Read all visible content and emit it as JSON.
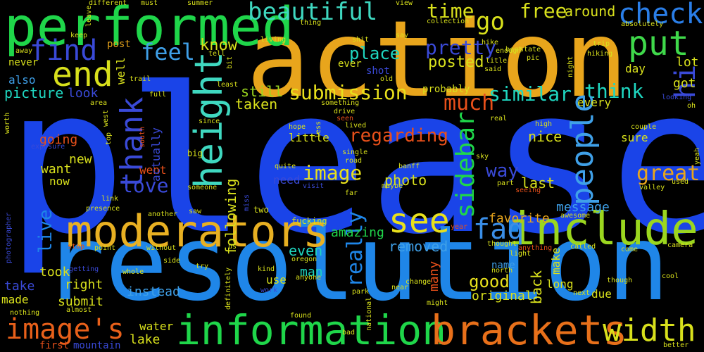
{
  "words": [
    {
      "text": "please",
      "color": "#1a44e8",
      "rotated": false
    },
    {
      "text": "action",
      "color": "#e8a51c",
      "rotated": false
    },
    {
      "text": "resolution",
      "color": "#1f86e8",
      "rotated": false
    },
    {
      "text": "performed",
      "color": "#1fd64a",
      "rotated": false
    },
    {
      "text": "moderators",
      "color": "#e8b022",
      "rotated": false
    },
    {
      "text": "include",
      "color": "#9bd61f",
      "rotated": false
    },
    {
      "text": "information",
      "color": "#1fd64a",
      "rotated": false
    },
    {
      "text": "brackets",
      "color": "#e8701a",
      "rotated": false
    },
    {
      "text": "image's",
      "color": "#e8601a",
      "rotated": false
    },
    {
      "text": "width",
      "color": "#d8e01c",
      "rotated": false
    },
    {
      "text": "height",
      "color": "#3fd8c0",
      "rotated": true
    },
    {
      "text": "end",
      "color": "#d8e01c",
      "rotated": false
    },
    {
      "text": "put",
      "color": "#3fd84a",
      "rotated": false
    },
    {
      "text": "check",
      "color": "#2a7ee8",
      "rotated": false
    },
    {
      "text": "find",
      "color": "#3a4ad8",
      "rotated": false
    },
    {
      "text": "see",
      "color": "#e8e01c",
      "rotated": false
    },
    {
      "text": "faq",
      "color": "#3a8ee8",
      "rotated": false
    },
    {
      "text": "beautiful",
      "color": "#3fd8c0",
      "rotated": false
    },
    {
      "text": "go",
      "color": "#d8e01c",
      "rotated": false
    },
    {
      "text": "time",
      "color": "#d8e01c",
      "rotated": false
    },
    {
      "text": "free",
      "color": "#d8e01c",
      "rotated": false
    },
    {
      "text": "around",
      "color": "#d8e01c",
      "rotated": false
    },
    {
      "text": "feel",
      "color": "#3fa0e8",
      "rotated": false
    },
    {
      "text": "know",
      "color": "#d8e01c",
      "rotated": false
    },
    {
      "text": "place",
      "color": "#1fd6c0",
      "rotated": false
    },
    {
      "text": "pretty",
      "color": "#3a4ad8",
      "rotated": false
    },
    {
      "text": "posted",
      "color": "#d8e01c",
      "rotated": false
    },
    {
      "text": "submission",
      "color": "#e8e01c",
      "rotated": false
    },
    {
      "text": "similar",
      "color": "#1fd6c0",
      "rotated": false
    },
    {
      "text": "think",
      "color": "#1fd6c0",
      "rotated": false
    },
    {
      "text": "much",
      "color": "#e8501a",
      "rotated": false
    },
    {
      "text": "people",
      "color": "#3fa0e8",
      "rotated": true
    },
    {
      "text": "thank",
      "color": "#3a4ad8",
      "rotated": true
    },
    {
      "text": "sidebar",
      "color": "#1fd64a",
      "rotated": true
    },
    {
      "text": "hi",
      "color": "#3a4ad8",
      "rotated": true
    },
    {
      "text": "picture",
      "color": "#1fd6c0",
      "rotated": false
    },
    {
      "text": "look",
      "color": "#3a4ad8",
      "rotated": false
    },
    {
      "text": "also",
      "color": "#3fa0e8",
      "rotated": false
    },
    {
      "text": "still",
      "color": "#9bd61f",
      "rotated": false
    },
    {
      "text": "taken",
      "color": "#d8e01c",
      "rotated": false
    },
    {
      "text": "regarding",
      "color": "#e8501a",
      "rotated": false
    },
    {
      "text": "image",
      "color": "#e8e01c",
      "rotated": false
    },
    {
      "text": "great",
      "color": "#e8a51c",
      "rotated": false
    },
    {
      "text": "love",
      "color": "#3a4ad8",
      "rotated": false
    },
    {
      "text": "way",
      "color": "#3a4ad8",
      "rotated": false
    },
    {
      "text": "nice",
      "color": "#d8e01c",
      "rotated": false
    },
    {
      "text": "last",
      "color": "#d8e01c",
      "rotated": false
    },
    {
      "text": "photo",
      "color": "#d8e01c",
      "rotated": false
    },
    {
      "text": "going",
      "color": "#e8501a",
      "rotated": false
    },
    {
      "text": "new",
      "color": "#d8e01c",
      "rotated": false
    },
    {
      "text": "want",
      "color": "#d8e01c",
      "rotated": false
    },
    {
      "text": "went",
      "color": "#e8501a",
      "rotated": false
    },
    {
      "text": "now",
      "color": "#d8e01c",
      "rotated": false
    },
    {
      "text": "little",
      "color": "#d8e01c",
      "rotated": false
    },
    {
      "text": "following",
      "color": "#d8e01c",
      "rotated": true
    },
    {
      "text": "really",
      "color": "#1f86e8",
      "rotated": true
    },
    {
      "text": "live",
      "color": "#1f86e8",
      "rotated": true
    },
    {
      "text": "even",
      "color": "#1fd6c0",
      "rotated": false
    },
    {
      "text": "removed",
      "color": "#3fa0e8",
      "rotated": false
    },
    {
      "text": "amazing",
      "color": "#1fd64a",
      "rotated": false
    },
    {
      "text": "message",
      "color": "#3fa0e8",
      "rotated": false
    },
    {
      "text": "favorite",
      "color": "#e8a51c",
      "rotated": false
    },
    {
      "text": "got",
      "color": "#d8e01c",
      "rotated": false
    },
    {
      "text": "lot",
      "color": "#d8e01c",
      "rotated": false
    },
    {
      "text": "every",
      "color": "#d8e01c",
      "rotated": false
    },
    {
      "text": "day",
      "color": "#d8e01c",
      "rotated": false
    },
    {
      "text": "sure",
      "color": "#d8e01c",
      "rotated": false
    },
    {
      "text": "good",
      "color": "#e8e01c",
      "rotated": false
    },
    {
      "text": "man",
      "color": "#1fd6c0",
      "rotated": false
    },
    {
      "text": "took",
      "color": "#d8e01c",
      "rotated": false
    },
    {
      "text": "take",
      "color": "#3a4ad8",
      "rotated": false
    },
    {
      "text": "right",
      "color": "#d8e01c",
      "rotated": false
    },
    {
      "text": "made",
      "color": "#d8e01c",
      "rotated": false
    },
    {
      "text": "submit",
      "color": "#d8e01c",
      "rotated": false
    },
    {
      "text": "instead",
      "color": "#3fa0e8",
      "rotated": false
    },
    {
      "text": "original",
      "color": "#d8e01c",
      "rotated": false
    },
    {
      "text": "long",
      "color": "#d8e01c",
      "rotated": false
    },
    {
      "text": "due",
      "color": "#d8e01c",
      "rotated": false
    },
    {
      "text": "back",
      "color": "#d8e01c",
      "rotated": true
    },
    {
      "text": "make",
      "color": "#d8e01c",
      "rotated": true
    },
    {
      "text": "use",
      "color": "#d8e01c",
      "rotated": false
    },
    {
      "text": "water",
      "color": "#d8e01c",
      "rotated": false
    },
    {
      "text": "lake",
      "color": "#d8e01c",
      "rotated": false
    },
    {
      "text": "mountain",
      "color": "#3a4ad8",
      "rotated": false
    },
    {
      "text": "first",
      "color": "#e8501a",
      "rotated": false
    },
    {
      "text": "name",
      "color": "#3fa0e8",
      "rotated": false
    },
    {
      "text": "many",
      "color": "#e8501a",
      "rotated": true
    },
    {
      "text": "need",
      "color": "#3a4ad8",
      "rotated": false
    },
    {
      "text": "post",
      "color": "#e8a51c",
      "rotated": false
    },
    {
      "text": "ever",
      "color": "#d8e01c",
      "rotated": false
    },
    {
      "text": "shot",
      "color": "#3a4ad8",
      "rotated": false
    },
    {
      "text": "probably",
      "color": "#d8e01c",
      "rotated": false
    },
    {
      "text": "actually",
      "color": "#3a4ad8",
      "rotated": true
    },
    {
      "text": "well",
      "color": "#d8e01c",
      "rotated": true
    },
    {
      "text": "never",
      "color": "#d8e01c",
      "rotated": false
    },
    {
      "text": "summer",
      "color": "#d8e01c",
      "rotated": false
    },
    {
      "text": "must",
      "color": "#d8e01c",
      "rotated": false
    },
    {
      "text": "different",
      "color": "#d8e01c",
      "rotated": false
    },
    {
      "text": "best",
      "color": "#d8e01c",
      "rotated": false
    },
    {
      "text": "view",
      "color": "#d8e01c",
      "rotated": false
    },
    {
      "text": "hike",
      "color": "#d8e01c",
      "rotated": false
    },
    {
      "text": "enough",
      "color": "#d8e01c",
      "rotated": false
    },
    {
      "text": "title",
      "color": "#d8e01c",
      "rotated": false
    },
    {
      "text": "said",
      "color": "#d8e01c",
      "rotated": false
    },
    {
      "text": "state",
      "color": "#d8e01c",
      "rotated": false
    },
    {
      "text": "pic",
      "color": "#d8e01c",
      "rotated": false
    },
    {
      "text": "trip",
      "color": "#d8e01c",
      "rotated": false
    },
    {
      "text": "hiking",
      "color": "#d8e01c",
      "rotated": false
    },
    {
      "text": "absolutely",
      "color": "#d8e01c",
      "rotated": false
    },
    {
      "text": "living",
      "color": "#d8e01c",
      "rotated": false
    },
    {
      "text": "thing",
      "color": "#d8e01c",
      "rotated": false
    },
    {
      "text": "collection",
      "color": "#d8e01c",
      "rotated": false
    },
    {
      "text": "say",
      "color": "#d8e01c",
      "rotated": false
    },
    {
      "text": "keep",
      "color": "#d8e01c",
      "rotated": false
    },
    {
      "text": "away",
      "color": "#d8e01c",
      "rotated": false
    },
    {
      "text": "tell",
      "color": "#d8e01c",
      "rotated": false
    },
    {
      "text": "bit",
      "color": "#d8e01c",
      "rotated": true
    },
    {
      "text": "least",
      "color": "#d8e01c",
      "rotated": false
    },
    {
      "text": "old",
      "color": "#d8e01c",
      "rotated": false
    },
    {
      "text": "trail",
      "color": "#d8e01c",
      "rotated": false
    },
    {
      "text": "full",
      "color": "#d8e01c",
      "rotated": false
    },
    {
      "text": "area",
      "color": "#d8e01c",
      "rotated": false
    },
    {
      "text": "something",
      "color": "#d8e01c",
      "rotated": false
    },
    {
      "text": "drive",
      "color": "#d8e01c",
      "rotated": false
    },
    {
      "text": "seen",
      "color": "#e8501a",
      "rotated": false
    },
    {
      "text": "lived",
      "color": "#d8e01c",
      "rotated": false
    },
    {
      "text": "since",
      "color": "#d8e01c",
      "rotated": false
    },
    {
      "text": "hope",
      "color": "#d8e01c",
      "rotated": false
    },
    {
      "text": "single",
      "color": "#d8e01c",
      "rotated": false
    },
    {
      "text": "road",
      "color": "#d8e01c",
      "rotated": false
    },
    {
      "text": "quite",
      "color": "#d8e01c",
      "rotated": false
    },
    {
      "text": "banff",
      "color": "#d8e01c",
      "rotated": false
    },
    {
      "text": "visit",
      "color": "#3a4ad8",
      "rotated": false
    },
    {
      "text": "far",
      "color": "#d8e01c",
      "rotated": false
    },
    {
      "text": "maybe",
      "color": "#d8e01c",
      "rotated": false
    },
    {
      "text": "big",
      "color": "#d8e01c",
      "rotated": false
    },
    {
      "text": "someone",
      "color": "#d8e01c",
      "rotated": false
    },
    {
      "text": "link",
      "color": "#d8e01c",
      "rotated": false
    },
    {
      "text": "presence",
      "color": "#d8e01c",
      "rotated": false
    },
    {
      "text": "another",
      "color": "#d8e01c",
      "rotated": false
    },
    {
      "text": "saw",
      "color": "#d8e01c",
      "rotated": false
    },
    {
      "text": "two",
      "color": "#d8e01c",
      "rotated": false
    },
    {
      "text": "fucking",
      "color": "#d8e01c",
      "rotated": false
    },
    {
      "text": "stop",
      "color": "#e8501a",
      "rotated": false
    },
    {
      "text": "point",
      "color": "#d8e01c",
      "rotated": false
    },
    {
      "text": "without",
      "color": "#d8e01c",
      "rotated": false
    },
    {
      "text": "us",
      "color": "#d8e01c",
      "rotated": false
    },
    {
      "text": "getting",
      "color": "#3a4ad8",
      "rotated": false
    },
    {
      "text": "whole",
      "color": "#d8e01c",
      "rotated": false
    },
    {
      "text": "side",
      "color": "#d8e01c",
      "rotated": false
    },
    {
      "text": "try",
      "color": "#d8e01c",
      "rotated": false
    },
    {
      "text": "kind",
      "color": "#d8e01c",
      "rotated": false
    },
    {
      "text": "anyone",
      "color": "#d8e01c",
      "rotated": false
    },
    {
      "text": "work",
      "color": "#3a4ad8",
      "rotated": false
    },
    {
      "text": "found",
      "color": "#d8e01c",
      "rotated": false
    },
    {
      "text": "bad",
      "color": "#d8e01c",
      "rotated": false
    },
    {
      "text": "almost",
      "color": "#d8e01c",
      "rotated": false
    },
    {
      "text": "nothing",
      "color": "#d8e01c",
      "rotated": false
    },
    {
      "text": "change",
      "color": "#d8e01c",
      "rotated": false
    },
    {
      "text": "near",
      "color": "#d8e01c",
      "rotated": false
    },
    {
      "text": "park",
      "color": "#d8e01c",
      "rotated": false
    },
    {
      "text": "might",
      "color": "#d8e01c",
      "rotated": false
    },
    {
      "text": "north",
      "color": "#d8e01c",
      "rotated": false
    },
    {
      "text": "thought",
      "color": "#d8e01c",
      "rotated": false
    },
    {
      "text": "light",
      "color": "#d8e01c",
      "rotated": false
    },
    {
      "text": "anything",
      "color": "#e8501a",
      "rotated": false
    },
    {
      "text": "called",
      "color": "#d8e01c",
      "rotated": false
    },
    {
      "text": "come",
      "color": "#d8e01c",
      "rotated": false
    },
    {
      "text": "camera",
      "color": "#d8e01c",
      "rotated": false
    },
    {
      "text": "cool",
      "color": "#d8e01c",
      "rotated": false
    },
    {
      "text": "though",
      "color": "#d8e01c",
      "rotated": false
    },
    {
      "text": "next",
      "color": "#d8e01c",
      "rotated": false
    },
    {
      "text": "better",
      "color": "#d8e01c",
      "rotated": false
    },
    {
      "text": "used",
      "color": "#d8e01c",
      "rotated": false
    },
    {
      "text": "valley",
      "color": "#d8e01c",
      "rotated": false
    },
    {
      "text": "year",
      "color": "#e8501a",
      "rotated": false
    },
    {
      "text": "awesome",
      "color": "#d8e01c",
      "rotated": false
    },
    {
      "text": "seeing",
      "color": "#e8501a",
      "rotated": false
    },
    {
      "text": "part",
      "color": "#d8e01c",
      "rotated": false
    },
    {
      "text": "sky",
      "color": "#d8e01c",
      "rotated": false
    },
    {
      "text": "real",
      "color": "#d8e01c",
      "rotated": false
    },
    {
      "text": "high",
      "color": "#d8e01c",
      "rotated": false
    },
    {
      "text": "couple",
      "color": "#d8e01c",
      "rotated": false
    },
    {
      "text": "looking",
      "color": "#3a4ad8",
      "rotated": false
    },
    {
      "text": "oh",
      "color": "#d8e01c",
      "rotated": false
    },
    {
      "text": "night",
      "color": "#d8e01c",
      "rotated": true
    },
    {
      "text": "photographer",
      "color": "#3a4ad8",
      "rotated": true
    },
    {
      "text": "worth",
      "color": "#d8e01c",
      "rotated": true
    },
    {
      "text": "exposure",
      "color": "#3a4ad8",
      "rotated": false
    },
    {
      "text": "top",
      "color": "#d8e01c",
      "rotated": true
    },
    {
      "text": "west",
      "color": "#d8e01c",
      "rotated": true
    },
    {
      "text": "south",
      "color": "#e8501a",
      "rotated": true
    },
    {
      "text": "leave",
      "color": "#d8e01c",
      "rotated": true
    },
    {
      "text": "shit",
      "color": "#d8e01c",
      "rotated": false
    },
    {
      "text": "less",
      "color": "#d8e01c",
      "rotated": true
    },
    {
      "text": "miss",
      "color": "#3a4ad8",
      "rotated": true
    },
    {
      "text": "oregon",
      "color": "#d8e01c",
      "rotated": false
    },
    {
      "text": "definitely",
      "color": "#d8e01c",
      "rotated": true
    },
    {
      "text": "national",
      "color": "#d8e01c",
      "rotated": true
    },
    {
      "text": "yeah",
      "color": "#d8e01c",
      "rotated": true
    }
  ]
}
